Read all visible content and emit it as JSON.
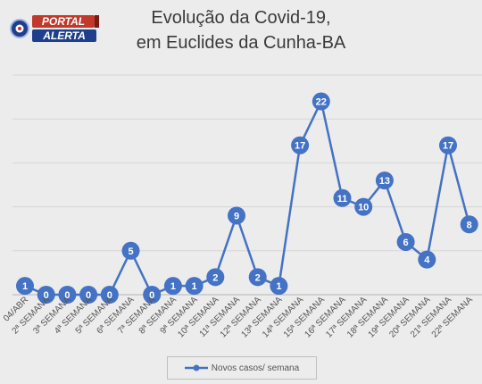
{
  "logo": {
    "line1": "PORTAL",
    "line2": "ALERTA"
  },
  "chart_data": {
    "type": "line",
    "title_line1": "Evolução da Covid-19,",
    "title_line2": "em Euclides da Cunha-BA",
    "categories": [
      "04/ABR",
      "2ª SEMANA",
      "3ª SEMANA",
      "4ª SEMANA",
      "5ª SEMANA",
      "6ª SEMANA",
      "7ª SEMANA",
      "8ª SEMANA",
      "9ª SEMANA",
      "10ª SEMANA",
      "11ª SEMANA",
      "12ª SEMANA",
      "13ª SEMANA",
      "14ª SEMANA",
      "15ª SEMANA",
      "16ª SEMANA",
      "17ª SEMANA",
      "18ª SEMANA",
      "19ª SEMANA",
      "20ª SEMANA",
      "21ª SEMANA",
      "22ª SEMANA"
    ],
    "series": [
      {
        "name": "Novos casos/ semana",
        "values": [
          1,
          0,
          0,
          0,
          0,
          5,
          0,
          1,
          1,
          2,
          9,
          2,
          1,
          17,
          22,
          11,
          10,
          13,
          6,
          4,
          17,
          8
        ]
      }
    ],
    "ylim": [
      0,
      25
    ],
    "grid": true,
    "legend": "bottom",
    "color": "#4472c4"
  }
}
